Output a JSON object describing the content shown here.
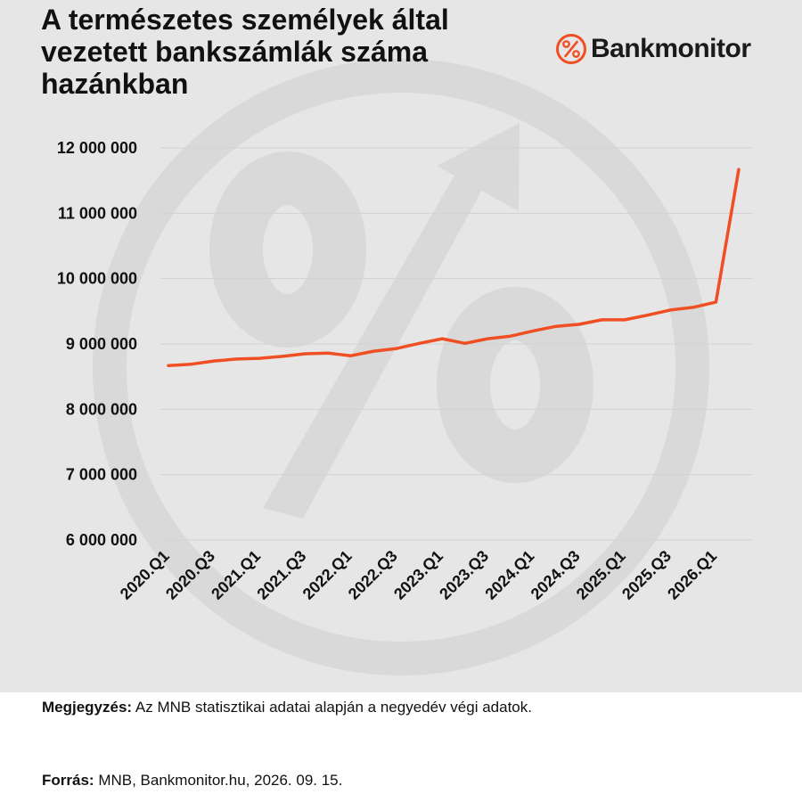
{
  "header": {
    "title": "A természetes személyek által vezetett bankszámlák száma hazánkban"
  },
  "brand": {
    "name": "Bankmonitor",
    "icon": "percent-icon",
    "color": "#f04e23"
  },
  "footer": {
    "note_label": "Megjegyzés:",
    "note_text": "Az MNB statisztikai adatai alapján a negyedév végi adatok.",
    "source_label": "Forrás:",
    "source_text": "MNB, Bankmonitor.hu, 2026. 09. 15."
  },
  "chart_data": {
    "type": "line",
    "title": "A természetes személyek által vezetett bankszámlák száma hazánkban",
    "xlabel": "",
    "ylabel": "",
    "ylim": [
      6000000,
      12000000
    ],
    "yticks": [
      6000000,
      7000000,
      8000000,
      9000000,
      10000000,
      11000000,
      12000000
    ],
    "ytick_labels": [
      "6 000 000",
      "7 000 000",
      "8 000 000",
      "9 000 000",
      "10 000 000",
      "11 000 000",
      "12 000 000"
    ],
    "grid": true,
    "x": [
      "2020.Q1",
      "2020.Q2",
      "2020.Q3",
      "2020.Q4",
      "2021.Q1",
      "2021.Q2",
      "2021.Q3",
      "2021.Q4",
      "2022.Q1",
      "2022.Q2",
      "2022.Q3",
      "2022.Q4",
      "2023.Q1",
      "2023.Q2",
      "2023.Q3",
      "2023.Q4",
      "2024.Q1",
      "2024.Q2",
      "2024.Q3",
      "2024.Q4",
      "2025.Q1",
      "2025.Q2",
      "2025.Q3",
      "2025.Q4",
      "2026.Q1",
      "2026.Q2"
    ],
    "xtick_labels": [
      "2020.Q1",
      "2020.Q3",
      "2021.Q1",
      "2021.Q3",
      "2022.Q1",
      "2022.Q3",
      "2023.Q1",
      "2023.Q3",
      "2024.Q1",
      "2024.Q3",
      "2025.Q1",
      "2025.Q3",
      "2026.Q1"
    ],
    "series": [
      {
        "color": "#f04e23",
        "values": [
          8670000,
          8690000,
          8740000,
          8770000,
          8780000,
          8810000,
          8850000,
          8860000,
          8820000,
          8890000,
          8930000,
          9010000,
          9080000,
          9010000,
          9080000,
          9120000,
          9200000,
          9270000,
          9300000,
          9370000,
          9370000,
          9440000,
          9520000,
          9560000,
          9640000,
          11670000
        ]
      }
    ]
  }
}
